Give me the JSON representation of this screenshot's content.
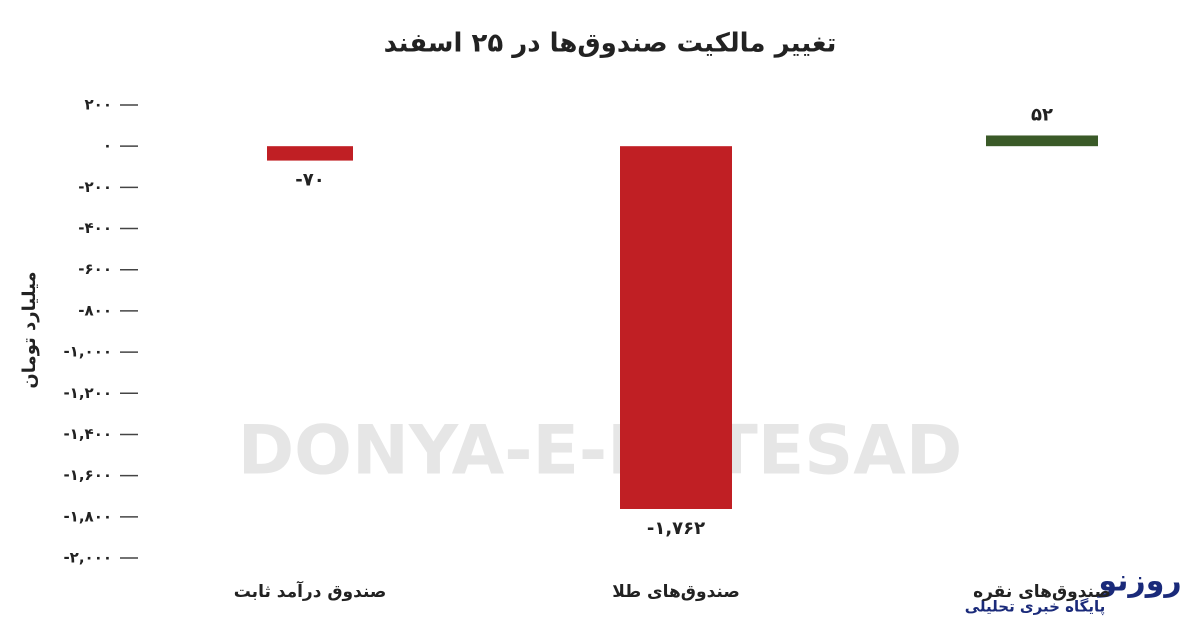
{
  "chart_data": {
    "type": "bar",
    "title": "تغییر مالکیت صندوق‌ها در ۲۵ اسفند",
    "y_label": "میلیارد تومان",
    "watermark": "DONYA-E-EQTESAD",
    "logo": "روزنو",
    "logo_subtitle": "پایگاه خبری تحلیلی",
    "categories": [
      "صندوق درآمد ثابت",
      "صندوق‌های طلا",
      "صندوق‌های نقره"
    ],
    "values": [
      -70,
      -1762,
      52
    ],
    "value_labels": [
      "-۷۰",
      "-۱,۷۶۲",
      "۵۲"
    ],
    "colors": [
      "#c01f24",
      "#c01f24",
      "#3a5a28"
    ],
    "ylim": [
      -2000,
      200
    ],
    "yticks": [
      {
        "value": 200,
        "label": "۲۰۰"
      },
      {
        "value": 0,
        "label": "۰"
      },
      {
        "value": -200,
        "label": "-۲۰۰"
      },
      {
        "value": -400,
        "label": "-۴۰۰"
      },
      {
        "value": -600,
        "label": "-۶۰۰"
      },
      {
        "value": -800,
        "label": "-۸۰۰"
      },
      {
        "value": -1000,
        "label": "-۱,۰۰۰"
      },
      {
        "value": -1200,
        "label": "-۱,۲۰۰"
      },
      {
        "value": -1400,
        "label": "-۱,۴۰۰"
      },
      {
        "value": -1600,
        "label": "-۱,۶۰۰"
      },
      {
        "value": -1800,
        "label": "-۱,۸۰۰"
      },
      {
        "value": -2000,
        "label": "-۲,۰۰۰"
      }
    ],
    "grid": true
  }
}
